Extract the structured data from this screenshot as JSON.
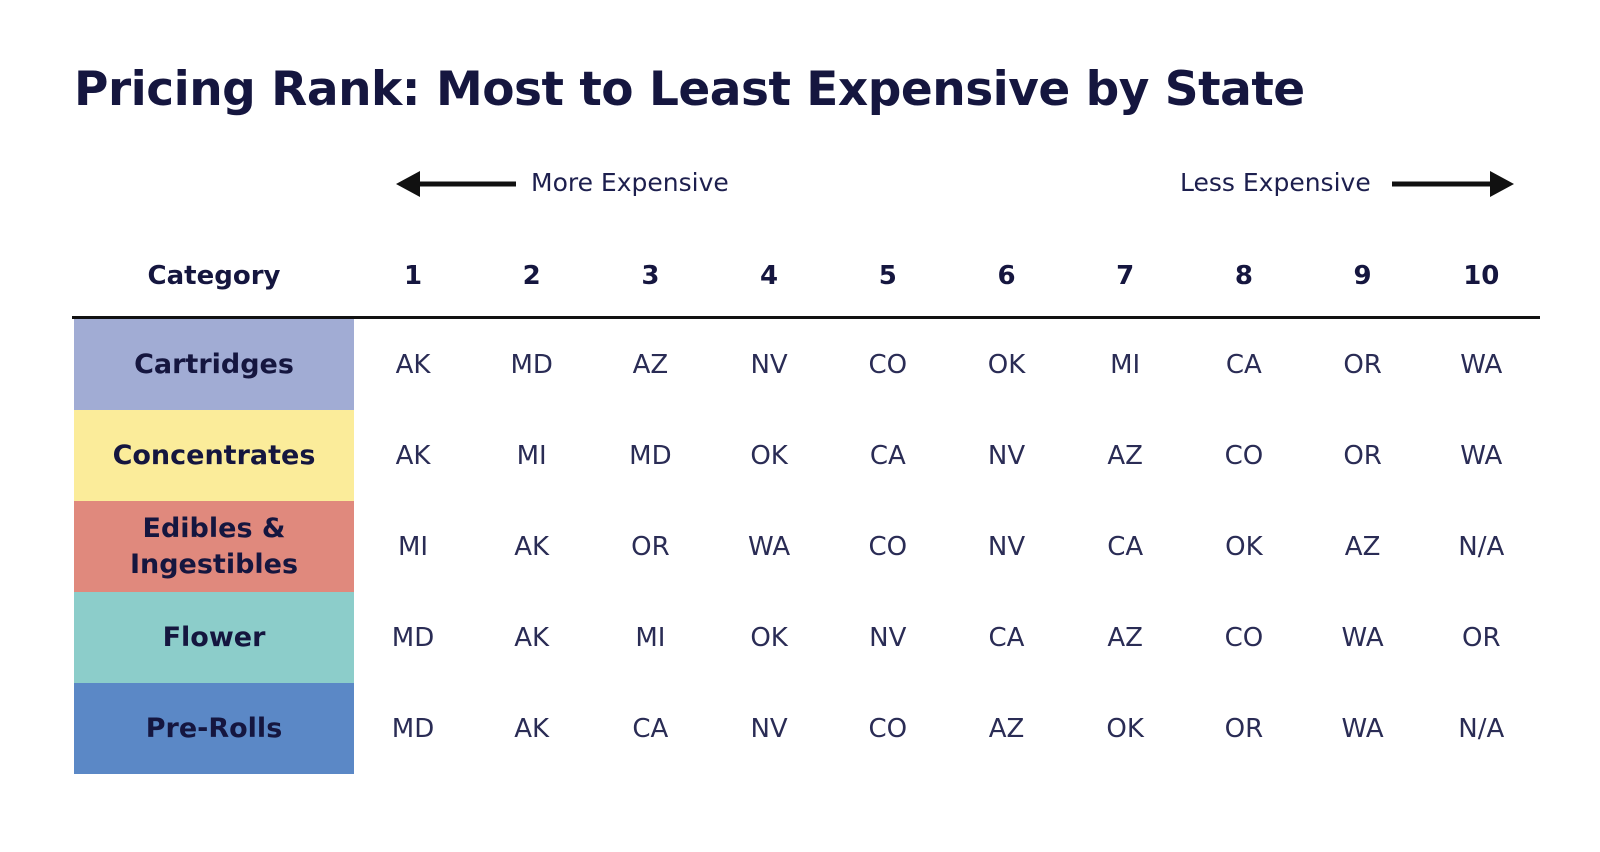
{
  "title": "Pricing Rank: Most to Least Expensive by State",
  "direction": {
    "left_label": "More Expensive",
    "right_label": "Less Expensive"
  },
  "chart_data": {
    "type": "table",
    "title": "Pricing Rank: Most to Least Expensive by State",
    "columns": [
      "Category",
      "1",
      "2",
      "3",
      "4",
      "5",
      "6",
      "7",
      "8",
      "9",
      "10"
    ],
    "rows": [
      {
        "category": "Cartridges",
        "color": "#a1acd4",
        "ranks": [
          "AK",
          "MD",
          "AZ",
          "NV",
          "CO",
          "OK",
          "MI",
          "CA",
          "OR",
          "WA"
        ]
      },
      {
        "category": "Concentrates",
        "color": "#fbec9a",
        "ranks": [
          "AK",
          "MI",
          "MD",
          "OK",
          "CA",
          "NV",
          "AZ",
          "CO",
          "OR",
          "WA"
        ]
      },
      {
        "category": "Edibles & Ingestibles",
        "color": "#e0897d",
        "ranks": [
          "MI",
          "AK",
          "OR",
          "WA",
          "CO",
          "NV",
          "CA",
          "OK",
          "AZ",
          "N/A"
        ]
      },
      {
        "category": "Flower",
        "color": "#8ccdca",
        "ranks": [
          "MD",
          "AK",
          "MI",
          "OK",
          "NV",
          "CA",
          "AZ",
          "CO",
          "WA",
          "OR"
        ]
      },
      {
        "category": "Pre-Rolls",
        "color": "#5b88c6",
        "ranks": [
          "MD",
          "AK",
          "CA",
          "NV",
          "CO",
          "AZ",
          "OK",
          "OR",
          "WA",
          "N/A"
        ]
      }
    ]
  }
}
